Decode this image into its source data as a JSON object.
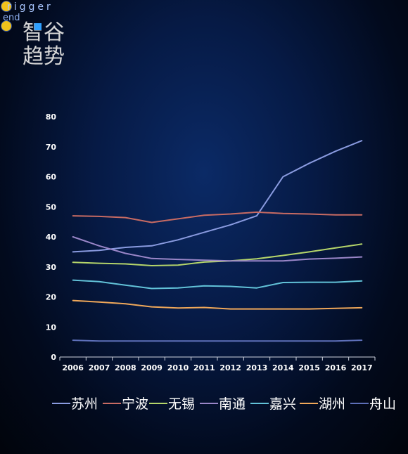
{
  "logo": {
    "letters": "rigger",
    "vertical": "end"
  },
  "brand": {
    "line1": "智谷",
    "line2": "趋势"
  },
  "chart_data": {
    "type": "line",
    "title": "",
    "xlabel": "",
    "ylabel": "",
    "ylim": [
      0,
      80
    ],
    "yticks": [
      0,
      10,
      20,
      30,
      40,
      50,
      60,
      70,
      80
    ],
    "categories": [
      "2006",
      "2007",
      "2008",
      "2009",
      "2010",
      "2011",
      "2012",
      "2013",
      "2014",
      "2015",
      "2016",
      "2017"
    ],
    "grid": false,
    "legend": "bottom",
    "series": [
      {
        "name": "苏州",
        "color": "#8a9be0",
        "values": [
          35,
          35.5,
          36.5,
          37,
          39,
          41.5,
          44,
          47,
          60,
          64.5,
          68.5,
          72
        ]
      },
      {
        "name": "宁波",
        "color": "#c86b63",
        "values": [
          47,
          46.8,
          46.4,
          44.8,
          46,
          47.2,
          47.6,
          48.2,
          47.8,
          47.6,
          47.3,
          47.3
        ]
      },
      {
        "name": "无锡",
        "color": "#b5d56a",
        "values": [
          31.5,
          31.2,
          31,
          30.4,
          30.6,
          31.6,
          32,
          32.7,
          33.8,
          35,
          36.3,
          37.6
        ]
      },
      {
        "name": "南通",
        "color": "#9a86c8",
        "values": [
          40,
          37,
          34.5,
          32.8,
          32.5,
          32.2,
          32,
          32,
          32,
          32.6,
          32.9,
          33.3
        ]
      },
      {
        "name": "嘉兴",
        "color": "#62c2d8",
        "values": [
          25.6,
          25.1,
          23.9,
          22.8,
          23,
          23.7,
          23.5,
          23,
          24.8,
          24.9,
          24.9,
          25.3
        ]
      },
      {
        "name": "湖州",
        "color": "#f0a85a",
        "values": [
          18.8,
          18.3,
          17.7,
          16.7,
          16.3,
          16.5,
          16,
          16,
          16,
          16,
          16.2,
          16.4
        ]
      },
      {
        "name": "舟山",
        "color": "#5d6fb8",
        "values": [
          5.6,
          5.3,
          5.3,
          5.3,
          5.3,
          5.3,
          5.3,
          5.3,
          5.3,
          5.3,
          5.3,
          5.6
        ]
      }
    ]
  }
}
